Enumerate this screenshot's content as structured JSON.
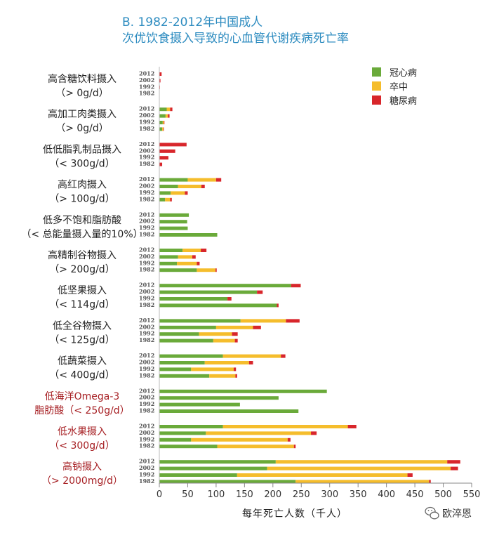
{
  "chart_data": {
    "type": "bar",
    "orientation": "horizontal",
    "stacked": true,
    "title": "B. 1982-2012年中国成人",
    "subtitle": "次优饮食摄入导致的心血管代谢疾病死亡率",
    "xlabel": "每年死亡人数（千人）",
    "xlim": [
      0,
      550
    ],
    "xticks": [
      0,
      50,
      100,
      150,
      200,
      250,
      300,
      350,
      400,
      450,
      500,
      550
    ],
    "legend_position": "top-right",
    "years": [
      "2012",
      "2002",
      "1992",
      "1982"
    ],
    "series": [
      {
        "name": "冠心病",
        "color": "#6aaa3a"
      },
      {
        "name": "卒中",
        "color": "#f5bd2c"
      },
      {
        "name": "糖尿病",
        "color": "#d8262b"
      }
    ],
    "categories": [
      {
        "label": [
          "高含糖饮料摄入",
          "（> 0g/d）"
        ],
        "highlight": false,
        "values": [
          [
            0,
            0,
            4
          ],
          [
            0,
            0,
            2
          ],
          [
            0,
            0,
            1
          ],
          [
            0,
            0,
            0
          ]
        ]
      },
      {
        "label": [
          "高加工肉类摄入",
          "（> 0g/d）"
        ],
        "highlight": false,
        "values": [
          [
            13,
            6,
            4
          ],
          [
            11,
            4,
            3
          ],
          [
            6,
            2,
            1
          ],
          [
            5,
            2,
            1
          ]
        ]
      },
      {
        "label": [
          "低低脂乳制品摄入",
          "（< 300g/d）"
        ],
        "highlight": false,
        "values": [
          [
            0,
            0,
            48
          ],
          [
            0,
            0,
            28
          ],
          [
            0,
            0,
            16
          ],
          [
            0,
            0,
            5
          ]
        ]
      },
      {
        "label": [
          "高红肉摄入",
          "（> 100g/d）"
        ],
        "highlight": false,
        "values": [
          [
            50,
            50,
            9
          ],
          [
            33,
            41,
            6
          ],
          [
            20,
            25,
            5
          ],
          [
            10,
            9,
            3
          ]
        ]
      },
      {
        "label": [
          "低多不饱和脂肪酸",
          "（< 总能量摄入量的10%）"
        ],
        "highlight": false,
        "values": [
          [
            52,
            0,
            0
          ],
          [
            49,
            0,
            0
          ],
          [
            50,
            0,
            0
          ],
          [
            102,
            0,
            0
          ]
        ]
      },
      {
        "label": [
          "高精制谷物摄入",
          "（> 200g/d）"
        ],
        "highlight": false,
        "values": [
          [
            41,
            32,
            10
          ],
          [
            33,
            25,
            6
          ],
          [
            31,
            35,
            5
          ],
          [
            66,
            33,
            2
          ]
        ]
      },
      {
        "label": [
          "低坚果摄入",
          "（< 114g/d）"
        ],
        "highlight": false,
        "values": [
          [
            232,
            0,
            17
          ],
          [
            172,
            0,
            10
          ],
          [
            120,
            0,
            7
          ],
          [
            207,
            0,
            3
          ]
        ]
      },
      {
        "label": [
          "低全谷物摄入",
          "（< 125g/d）"
        ],
        "highlight": false,
        "values": [
          [
            143,
            80,
            24
          ],
          [
            100,
            65,
            14
          ],
          [
            70,
            58,
            10
          ],
          [
            95,
            38,
            5
          ]
        ]
      },
      {
        "label": [
          "低蔬菜摄入",
          "（< 400g/d）"
        ],
        "highlight": false,
        "values": [
          [
            112,
            102,
            8
          ],
          [
            80,
            78,
            7
          ],
          [
            56,
            75,
            4
          ],
          [
            88,
            46,
            3
          ]
        ]
      },
      {
        "label": [
          "低海洋Omega-3",
          "脂肪酸（< 250g/d）"
        ],
        "highlight": true,
        "values": [
          [
            295,
            0,
            0
          ],
          [
            210,
            0,
            0
          ],
          [
            142,
            0,
            0
          ],
          [
            245,
            0,
            0
          ]
        ]
      },
      {
        "label": [
          "低水果摄入",
          "（< 300g/d）"
        ],
        "highlight": true,
        "values": [
          [
            112,
            220,
            15
          ],
          [
            82,
            185,
            10
          ],
          [
            56,
            170,
            5
          ],
          [
            102,
            135,
            3
          ]
        ]
      },
      {
        "label": [
          "高钠摄入",
          "（> 2000mg/d）"
        ],
        "highlight": true,
        "values": [
          [
            205,
            302,
            23
          ],
          [
            190,
            323,
            13
          ],
          [
            137,
            300,
            9
          ],
          [
            240,
            235,
            3
          ]
        ]
      }
    ]
  },
  "legend": {
    "heart": "冠心病",
    "stroke": "卒中",
    "diabetes": "糖尿病"
  },
  "watermark": {
    "text": "欧淬恩",
    "icon": "wechat-icon"
  }
}
